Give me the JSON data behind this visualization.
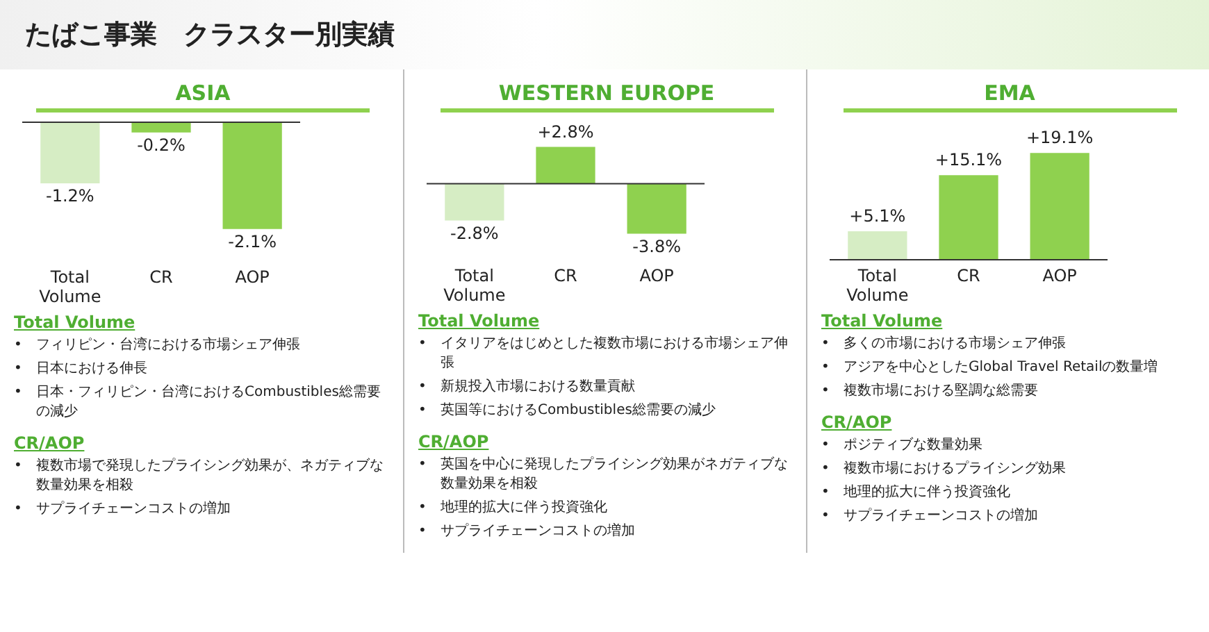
{
  "chart_data": [
    {
      "type": "other",
      "title": "たばこ事業　クラスター別実績"
    },
    {
      "type": "bar",
      "title": "ASIA",
      "categories": [
        "Total Volume",
        "CR",
        "AOP"
      ],
      "values": [
        -1.2,
        -0.2,
        -2.1
      ],
      "colors": [
        "#d6edc4",
        "#8fd14f",
        "#8fd14f"
      ],
      "value_labels": [
        "-1.2%",
        "-0.2%",
        "-2.1%"
      ]
    },
    {
      "type": "other",
      "title": "Total Volume",
      "annotations": [
        "•\tフィリピン・台湾における市場シェア伸張",
        "•\t日本における伸長",
        "•\t日本・フィリピン・台湾におけるCombustibles総需要の減少"
      ]
    },
    {
      "type": "other",
      "title": "CR/AOP",
      "annotations": [
        "•\t複数市場で発現したプライシング効果が、ネガティブな数量効果を相殺",
        "•\tサプライチェーンコストの増加"
      ]
    },
    {
      "type": "bar",
      "title": "WESTERN EUROPE",
      "categories": [
        "Total Volume",
        "CR",
        "AOP"
      ],
      "values": [
        -2.8,
        2.8,
        -3.8
      ],
      "colors": [
        "#d6edc4",
        "#8fd14f",
        "#8fd14f"
      ],
      "value_labels": [
        "-2.8%",
        "+2.8%",
        "-3.8%"
      ]
    },
    {
      "type": "other",
      "title": "Total Volume",
      "annotations": [
        "•\tイタリアをはじめとした複数市場における市場シェア伸張",
        "•\t新規投入市場における数量貢献",
        "•\t英国等におけるCombustibles総需要の減少"
      ]
    },
    {
      "type": "other",
      "title": "CR/AOP",
      "annotations": [
        "•\t英国を中心に発現したプライシング効果がネガティブな数量効果を相殺",
        "•\t地理的拡大に伴う投資強化",
        "•\tサプライチェーンコストの増加"
      ]
    },
    {
      "type": "bar",
      "title": "EMA",
      "categories": [
        "Total Volume",
        "CR",
        "AOP"
      ],
      "values": [
        5.1,
        15.1,
        19.1
      ],
      "colors": [
        "#d6edc4",
        "#8fd14f",
        "#8fd14f"
      ],
      "value_labels": [
        "+5.1%",
        "+15.1%",
        "+19.1%"
      ]
    },
    {
      "type": "other",
      "title": "Total Volume",
      "annotations": [
        "•\t多くの市場における市場シェア伸張",
        "•\tアジアを中心としたGlobal Travel Retailの数量増",
        "•\t複数市場における堅調な総需要"
      ]
    },
    {
      "type": "other",
      "title": "CR/AOP",
      "annotations": [
        "•\tポジティブな数量効果",
        "•\t複数市場におけるプライシング効果",
        "•\t地理的拡大に伴う投資強化",
        "•\tサプライチェーンコストの増加"
      ]
    }
  ]
}
